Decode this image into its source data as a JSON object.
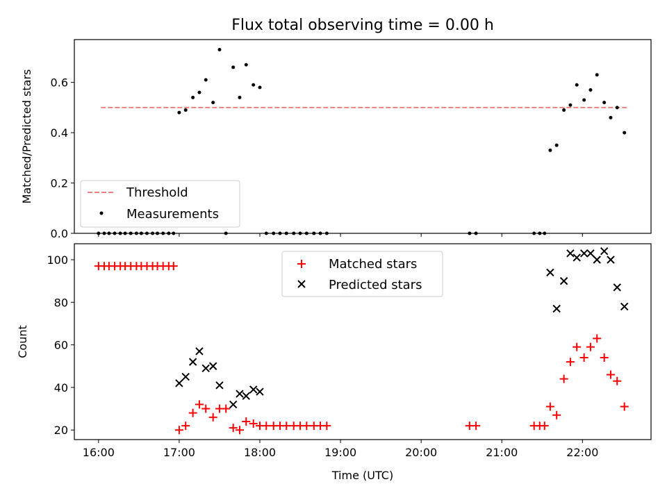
{
  "chart_data": {
    "title": "Flux total observing time = 0.00 h",
    "xlabel": "Time (UTC)",
    "x_ticks": [
      "16:00",
      "17:00",
      "18:00",
      "19:00",
      "20:00",
      "21:00",
      "22:00"
    ],
    "x_range_hours": [
      15.7,
      22.85
    ],
    "top": {
      "type": "scatter",
      "ylabel": "Matched/Predicted stars",
      "ylim": [
        0,
        0.77
      ],
      "y_ticks": [
        "0.0",
        "0.2",
        "0.4",
        "0.6"
      ],
      "threshold": {
        "name": "Threshold",
        "value": 0.5,
        "x_hours": [
          16.03,
          22.55
        ],
        "color": "#f08080"
      },
      "measurements": {
        "name": "Measurements",
        "x_hours": [
          16.0,
          16.07,
          16.13,
          16.2,
          16.27,
          16.33,
          16.4,
          16.47,
          16.53,
          16.6,
          16.67,
          16.73,
          16.8,
          16.87,
          16.93,
          17.0,
          17.08,
          17.17,
          17.25,
          17.33,
          17.42,
          17.5,
          17.58,
          17.67,
          17.75,
          17.83,
          17.92,
          18.0,
          18.08,
          18.17,
          18.25,
          18.33,
          18.42,
          18.5,
          18.58,
          18.67,
          18.75,
          18.83,
          20.6,
          20.68,
          21.4,
          21.47,
          21.53,
          21.6,
          21.68,
          21.77,
          21.85,
          21.93,
          22.02,
          22.1,
          22.18,
          22.27,
          22.35,
          22.43,
          22.52
        ],
        "y": [
          0,
          0,
          0,
          0,
          0,
          0,
          0,
          0,
          0,
          0,
          0,
          0,
          0,
          0,
          0,
          0.48,
          0.49,
          0.54,
          0.56,
          0.61,
          0.52,
          0.73,
          0,
          0.66,
          0.54,
          0.67,
          0.59,
          0.58,
          0,
          0,
          0,
          0,
          0,
          0,
          0,
          0,
          0,
          0,
          0,
          0,
          0,
          0,
          0,
          0.33,
          0.35,
          0.49,
          0.51,
          0.59,
          0.53,
          0.57,
          0.63,
          0.52,
          0.46,
          0.5,
          0.4
        ]
      },
      "legend_position": "lower-left"
    },
    "bottom": {
      "type": "scatter",
      "ylabel": "Count",
      "ylim": [
        15.5,
        107.5
      ],
      "y_ticks": [
        "20",
        "40",
        "60",
        "80",
        "100"
      ],
      "legend_position": "upper-center",
      "matched": {
        "name": "Matched stars",
        "color": "#ff0000",
        "x_hours": [
          16.0,
          16.07,
          16.13,
          16.2,
          16.27,
          16.33,
          16.4,
          16.47,
          16.53,
          16.6,
          16.67,
          16.73,
          16.8,
          16.87,
          16.93,
          17.0,
          17.08,
          17.17,
          17.25,
          17.33,
          17.42,
          17.5,
          17.58,
          17.67,
          17.75,
          17.83,
          17.92,
          18.0,
          18.08,
          18.17,
          18.25,
          18.33,
          18.42,
          18.5,
          18.58,
          18.67,
          18.75,
          18.83,
          20.6,
          20.68,
          21.4,
          21.47,
          21.53,
          21.6,
          21.68,
          21.77,
          21.85,
          21.93,
          22.02,
          22.1,
          22.18,
          22.27,
          22.35,
          22.43,
          22.52
        ],
        "y": [
          97,
          97,
          97,
          97,
          97,
          97,
          97,
          97,
          97,
          97,
          97,
          97,
          97,
          97,
          97,
          20,
          22,
          28,
          32,
          30,
          26,
          30,
          30,
          21,
          20,
          24,
          23,
          22,
          22,
          22,
          22,
          22,
          22,
          22,
          22,
          22,
          22,
          22,
          22,
          22,
          22,
          22,
          22,
          31,
          27,
          44,
          52,
          59,
          54,
          59,
          63,
          54,
          46,
          43,
          31
        ]
      },
      "predicted": {
        "name": "Predicted stars",
        "color": "#000000",
        "x_hours": [
          17.0,
          17.08,
          17.17,
          17.25,
          17.33,
          17.42,
          17.5,
          17.67,
          17.75,
          17.83,
          17.92,
          18.0,
          21.6,
          21.68,
          21.77,
          21.85,
          21.93,
          22.02,
          22.1,
          22.18,
          22.27,
          22.35,
          22.43,
          22.52
        ],
        "y": [
          42,
          45,
          52,
          57,
          49,
          50,
          41,
          32,
          37,
          36,
          39,
          38,
          94,
          77,
          90,
          103,
          101,
          103,
          103,
          100,
          104,
          100,
          87,
          78
        ]
      }
    }
  }
}
